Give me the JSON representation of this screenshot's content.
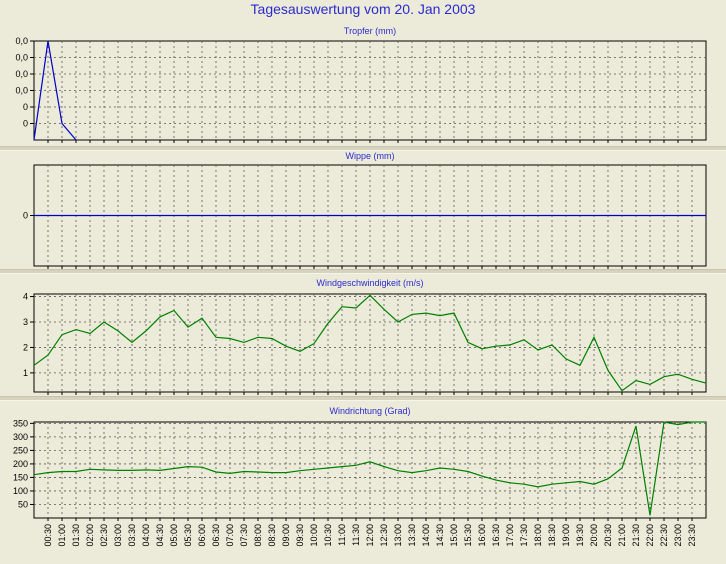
{
  "title": "Tagesauswertung vom 20. Jan 2003",
  "colors": {
    "background": "#ecebd9",
    "title": "#2a2acf",
    "blue_series": "#0000cc",
    "green_series": "#008000",
    "grid": "#5a5a5a"
  },
  "x_labels": [
    "00:30",
    "01:00",
    "01:30",
    "02:00",
    "02:30",
    "03:00",
    "03:30",
    "04:00",
    "04:30",
    "05:00",
    "05:30",
    "06:00",
    "06:30",
    "07:00",
    "07:30",
    "08:00",
    "08:30",
    "09:00",
    "09:30",
    "10:00",
    "10:30",
    "11:00",
    "11:30",
    "12:00",
    "12:30",
    "13:00",
    "13:30",
    "14:00",
    "14:30",
    "15:00",
    "15:30",
    "16:00",
    "16:30",
    "17:00",
    "17:30",
    "18:00",
    "18:30",
    "19:00",
    "19:30",
    "20:00",
    "20:30",
    "21:00",
    "21:30",
    "22:00",
    "22:30",
    "23:00",
    "23:30"
  ],
  "chart_data": [
    {
      "type": "line",
      "title": "Tropfer (mm)",
      "x_range": [
        0,
        24
      ],
      "y_tick_labels": [
        "0,0",
        "0,0",
        "0,0",
        "0,0",
        "0",
        "0"
      ],
      "ylim": [
        0,
        0.06
      ],
      "grid": true,
      "series": [
        {
          "color": "#0000cc",
          "x": [
            0,
            0.5,
            1.0,
            1.5
          ],
          "y": [
            0,
            0.06,
            0.01,
            0
          ]
        }
      ]
    },
    {
      "type": "line",
      "title": "Wippe (mm)",
      "x_range": [
        0,
        24
      ],
      "y_tick_labels": [
        "0"
      ],
      "ylim": [
        -1,
        1
      ],
      "grid": true,
      "series": [
        {
          "color": "#0000cc",
          "x": [
            0,
            24
          ],
          "y": [
            0,
            0
          ]
        }
      ]
    },
    {
      "type": "line",
      "title": "Windgeschwindigkeit (m/s)",
      "x_range": [
        0,
        24
      ],
      "y_tick_labels": [
        "4",
        "3",
        "2",
        "1"
      ],
      "y_ticks": [
        4,
        3,
        2,
        1
      ],
      "ylim": [
        0.25,
        4.1
      ],
      "grid": true,
      "series": [
        {
          "color": "#008000",
          "x": [
            0,
            0.5,
            1,
            1.5,
            2,
            2.5,
            3,
            3.5,
            4,
            4.5,
            5,
            5.5,
            6,
            6.5,
            7,
            7.5,
            8,
            8.5,
            9,
            9.5,
            10,
            10.5,
            11,
            11.5,
            12,
            12.5,
            13,
            13.5,
            14,
            14.5,
            15,
            15.5,
            16,
            16.5,
            17,
            17.5,
            18,
            18.5,
            19,
            19.5,
            20,
            20.5,
            21,
            21.5,
            22,
            22.5,
            23,
            23.5,
            24
          ],
          "y": [
            1.3,
            1.7,
            2.5,
            2.7,
            2.55,
            3.0,
            2.65,
            2.2,
            2.65,
            3.2,
            3.45,
            2.8,
            3.15,
            2.4,
            2.35,
            2.2,
            2.4,
            2.35,
            2.05,
            1.85,
            2.15,
            2.95,
            3.6,
            3.55,
            4.05,
            3.5,
            3.0,
            3.3,
            3.35,
            3.25,
            3.35,
            2.2,
            1.95,
            2.05,
            2.1,
            2.3,
            1.9,
            2.1,
            1.55,
            1.3,
            2.4,
            1.1,
            0.3,
            0.7,
            0.55,
            0.85,
            0.95,
            0.75,
            0.6
          ]
        }
      ]
    },
    {
      "type": "line",
      "title": "Windrichtung (Grad)",
      "x_range": [
        0,
        24
      ],
      "y_tick_labels": [
        "350",
        "300",
        "250",
        "200",
        "150",
        "100",
        "50"
      ],
      "y_ticks": [
        350,
        300,
        250,
        200,
        150,
        100,
        50
      ],
      "ylim": [
        0,
        355
      ],
      "grid": true,
      "series": [
        {
          "color": "#008000",
          "x": [
            0,
            0.5,
            1,
            1.5,
            2,
            2.5,
            3,
            3.5,
            4,
            4.5,
            5,
            5.5,
            6,
            6.5,
            7,
            7.5,
            8,
            8.5,
            9,
            9.5,
            10,
            10.5,
            11,
            11.5,
            12,
            12.5,
            13,
            13.5,
            14,
            14.5,
            15,
            15.5,
            16,
            16.5,
            17,
            17.5,
            18,
            18.5,
            19,
            19.5,
            20,
            20.5,
            21,
            21.5,
            22,
            22.5,
            23,
            23.5,
            24
          ],
          "y": [
            160,
            168,
            172,
            172,
            180,
            178,
            176,
            176,
            178,
            176,
            183,
            190,
            188,
            170,
            165,
            172,
            170,
            168,
            168,
            175,
            180,
            185,
            190,
            195,
            208,
            190,
            175,
            168,
            175,
            185,
            180,
            172,
            155,
            140,
            130,
            125,
            115,
            125,
            130,
            135,
            125,
            145,
            185,
            340,
            10,
            355,
            345,
            355,
            355
          ]
        }
      ]
    }
  ]
}
